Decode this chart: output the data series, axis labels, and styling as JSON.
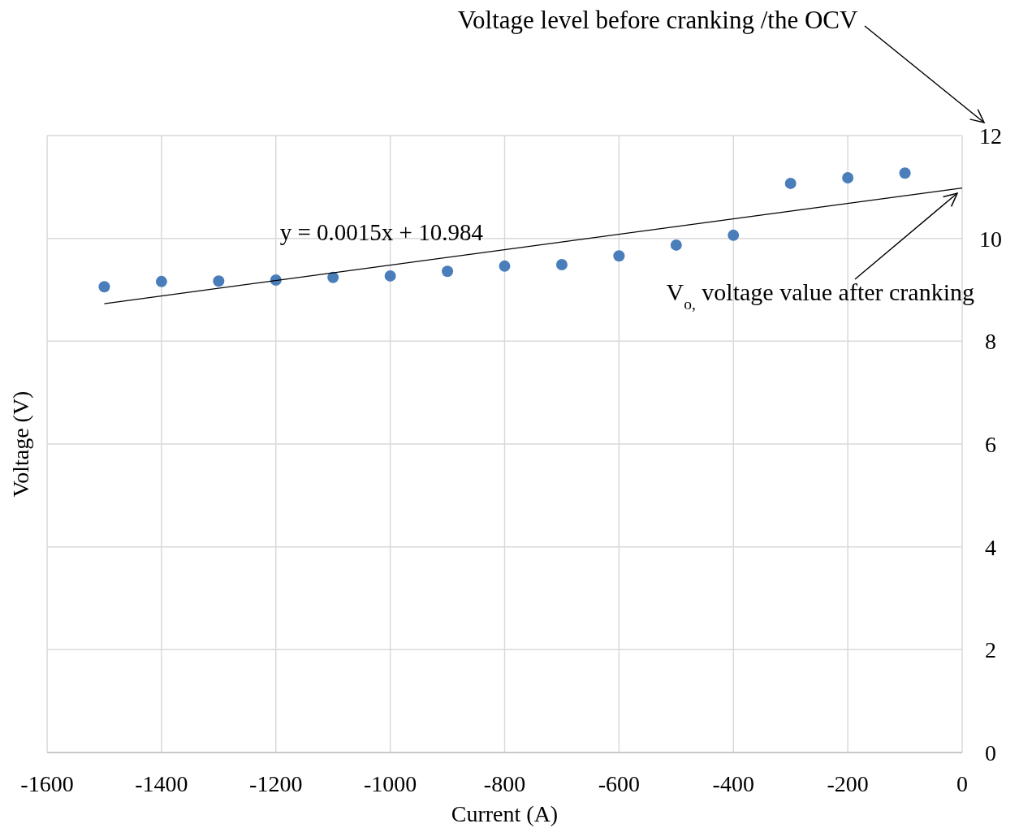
{
  "chart_data": {
    "type": "scatter",
    "xlabel": "Current (A)",
    "ylabel": "Voltage (V)",
    "xlim": [
      -1600,
      0
    ],
    "xticks": [
      -1600,
      -1400,
      -1200,
      -1000,
      -800,
      -600,
      -400,
      -200,
      0
    ],
    "ylim": [
      0,
      12
    ],
    "yticks": [
      0,
      2,
      4,
      6,
      8,
      10,
      12
    ],
    "grid": true,
    "marker": "circle",
    "series": [
      {
        "color": "#4a7ebb",
        "x": [
          -1500,
          -1400,
          -1300,
          -1200,
          -1100,
          -1000,
          -900,
          -800,
          -700,
          -600,
          -500,
          -400,
          -300,
          -200,
          -100
        ],
        "values": [
          9.06,
          9.16,
          9.17,
          9.19,
          9.24,
          9.27,
          9.36,
          9.46,
          9.49,
          9.66,
          9.87,
          10.06,
          11.07,
          11.18,
          11.27
        ]
      },
      {
        "type": "line",
        "marker": "none",
        "color": "#000000",
        "x": [
          -1500,
          0
        ],
        "values": [
          8.73,
          10.98
        ]
      }
    ],
    "annotations": [
      "y = 0.0015x + 10.984",
      "Voltage level before cranking /the OCV",
      "V$_{o,}$ voltage value after cranking"
    ]
  }
}
